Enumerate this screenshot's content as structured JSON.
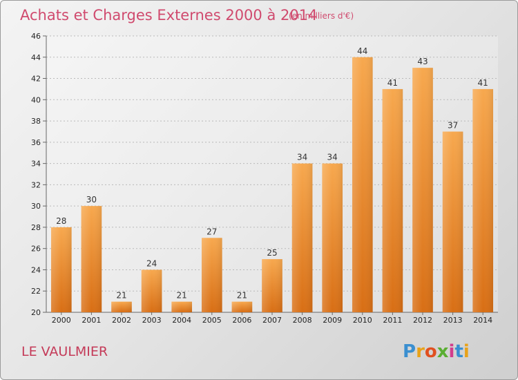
{
  "chart_data": {
    "type": "bar",
    "title": "Achats et Charges Externes 2000 à 2014",
    "subtitle": "(en milliers d'€)",
    "xlabel": "",
    "ylabel": "",
    "categories": [
      "2000",
      "2001",
      "2002",
      "2003",
      "2004",
      "2005",
      "2006",
      "2007",
      "2008",
      "2009",
      "2010",
      "2011",
      "2012",
      "2013",
      "2014"
    ],
    "values": [
      28,
      30,
      21,
      24,
      21,
      27,
      21,
      25,
      34,
      34,
      44,
      41,
      43,
      37,
      41
    ],
    "ylim": [
      20,
      46
    ],
    "yticks": [
      20,
      22,
      24,
      26,
      28,
      30,
      32,
      34,
      36,
      38,
      40,
      42,
      44,
      46
    ],
    "grid": true,
    "legend": "none",
    "bar_color_top": "#f7a84e",
    "bar_color_bottom": "#d86e14"
  },
  "place_name": "LE VAULMIER",
  "logo": {
    "letters": [
      "P",
      "r",
      "o",
      "x",
      "i",
      "t",
      "i"
    ],
    "colors": [
      "#3a8fd0",
      "#e8a21a",
      "#e05020",
      "#5aae32",
      "#d23d8c",
      "#3a8fd0",
      "#e8a21a"
    ]
  }
}
